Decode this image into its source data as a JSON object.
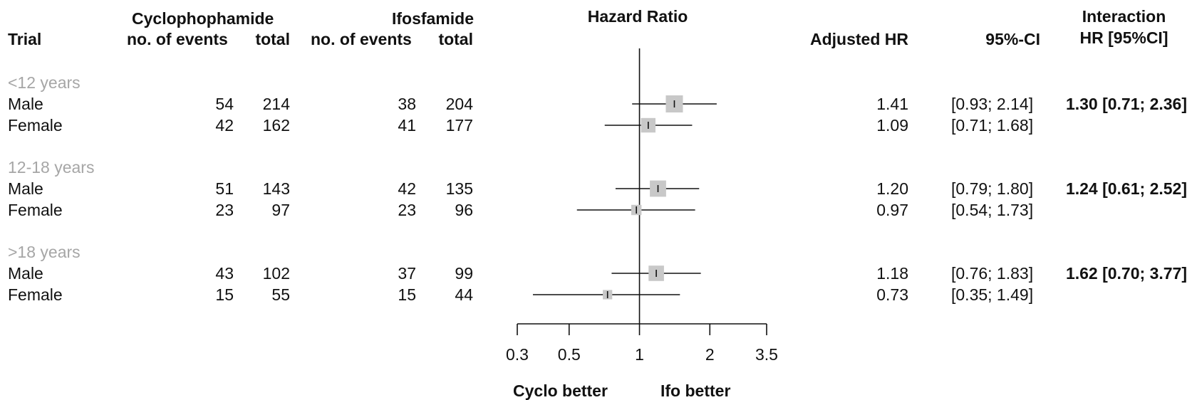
{
  "headers": {
    "trial": "Trial",
    "cyclo": "Cyclophophamide",
    "ifo": "Ifosfamide",
    "events": "no. of events",
    "total": "total",
    "hazard_ratio": "Hazard Ratio",
    "adjusted_hr": "Adjusted HR",
    "ci": "95%-CI",
    "interaction_line1": "Interaction",
    "interaction_line2": "HR [95%CI]"
  },
  "footer": {
    "left": "Cyclo better",
    "right": "Ifo better"
  },
  "groups": [
    {
      "label": "<12 years",
      "interaction": "1.30 [0.71; 2.36]",
      "rows": [
        {
          "label": "Male",
          "c_events": "54",
          "c_total": "214",
          "i_events": "38",
          "i_total": "204",
          "hr_text": "1.41",
          "ci_text": "[0.93; 2.14]"
        },
        {
          "label": "Female",
          "c_events": "42",
          "c_total": "162",
          "i_events": "41",
          "i_total": "177",
          "hr_text": "1.09",
          "ci_text": "[0.71; 1.68]"
        }
      ]
    },
    {
      "label": "12-18 years",
      "interaction": "1.24 [0.61; 2.52]",
      "rows": [
        {
          "label": "Male",
          "c_events": "51",
          "c_total": "143",
          "i_events": "42",
          "i_total": "135",
          "hr_text": "1.20",
          "ci_text": "[0.79; 1.80]"
        },
        {
          "label": "Female",
          "c_events": "23",
          "c_total": "97",
          "i_events": "23",
          "i_total": "96",
          "hr_text": "0.97",
          "ci_text": "[0.54; 1.73]"
        }
      ]
    },
    {
      "label": ">18 years",
      "interaction": "1.62 [0.70; 3.77]",
      "rows": [
        {
          "label": "Male",
          "c_events": "43",
          "c_total": "102",
          "i_events": "37",
          "i_total": "99",
          "hr_text": "1.18",
          "ci_text": "[0.76; 1.83]"
        },
        {
          "label": "Female",
          "c_events": "15",
          "c_total": "55",
          "i_events": "15",
          "i_total": "44",
          "hr_text": "0.73",
          "ci_text": "[0.35; 1.49]"
        }
      ]
    }
  ],
  "chart_data": {
    "type": "scatter",
    "title": "Hazard Ratio",
    "x_scale": "log",
    "xlim": [
      0.3,
      3.5
    ],
    "x_ticks": [
      0.3,
      0.5,
      1,
      2,
      3.5
    ],
    "x_tick_labels": [
      "0.3",
      "0.5",
      "1",
      "2",
      "3.5"
    ],
    "reference_line": 1,
    "grid": false,
    "marker_color": "#c8c8c8",
    "line_color": "#111111",
    "points": [
      {
        "group": "<12 years",
        "label": "Male",
        "hr": 1.41,
        "lower": 0.93,
        "upper": 2.14,
        "weight": 1.0
      },
      {
        "group": "<12 years",
        "label": "Female",
        "hr": 1.09,
        "lower": 0.71,
        "upper": 1.68,
        "weight": 0.85
      },
      {
        "group": "12-18 years",
        "label": "Male",
        "hr": 1.2,
        "lower": 0.79,
        "upper": 1.8,
        "weight": 0.95
      },
      {
        "group": "12-18 years",
        "label": "Female",
        "hr": 0.97,
        "lower": 0.54,
        "upper": 1.73,
        "weight": 0.6
      },
      {
        "group": ">18 years",
        "label": "Male",
        "hr": 1.18,
        "lower": 0.76,
        "upper": 1.83,
        "weight": 0.9
      },
      {
        "group": ">18 years",
        "label": "Female",
        "hr": 0.73,
        "lower": 0.35,
        "upper": 1.49,
        "weight": 0.55
      }
    ]
  }
}
